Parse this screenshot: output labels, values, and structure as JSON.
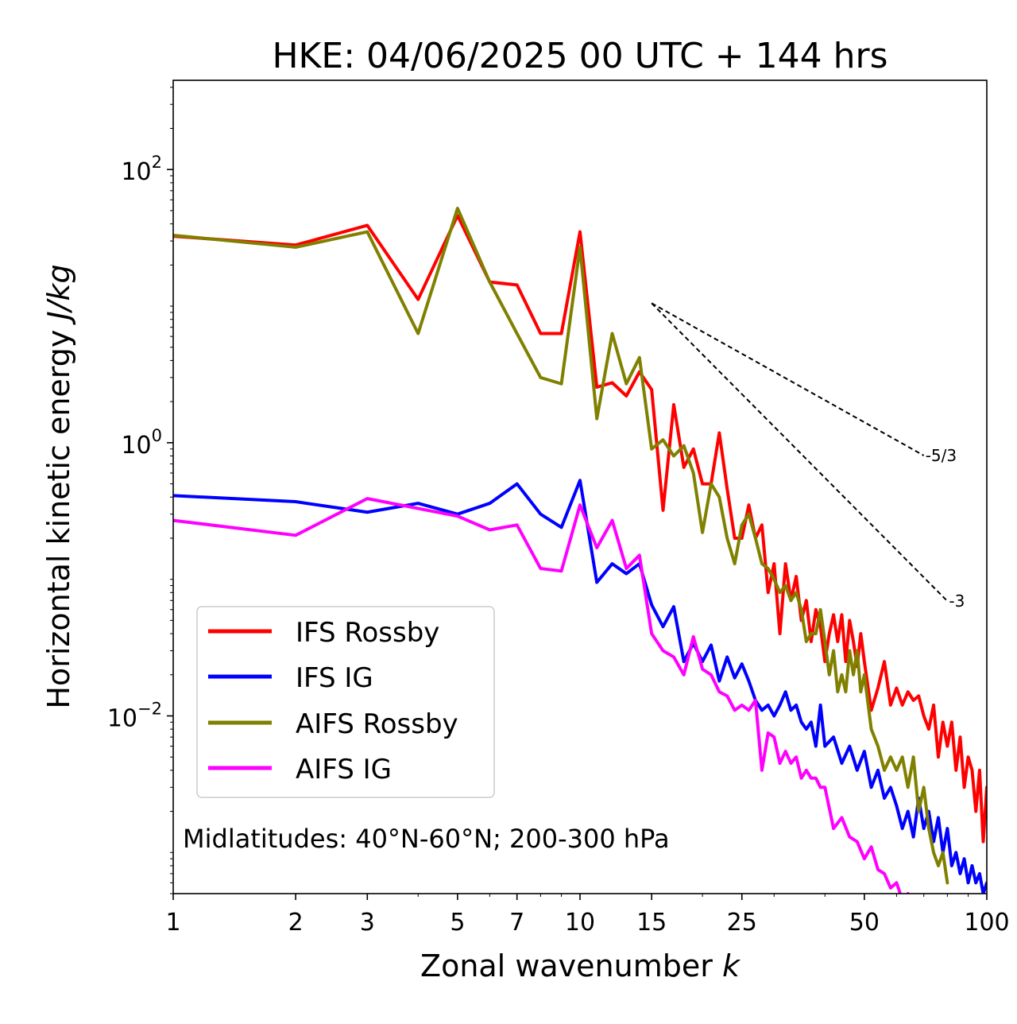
{
  "chart_data": {
    "type": "line",
    "title": "HKE: 04/06/2025 00 UTC + 144 hrs",
    "xlabel_text": "Zonal wavenumber ",
    "xlabel_math": "k",
    "ylabel_text": "Horizontal kinetic energy ",
    "ylabel_math": "J/kg",
    "xscale": "log",
    "yscale": "log",
    "xlim": [
      1,
      100
    ],
    "ylim": [
      0.0005,
      450
    ],
    "x_ticks": [
      {
        "value": 1,
        "label": "1"
      },
      {
        "value": 2,
        "label": "2"
      },
      {
        "value": 3,
        "label": "3"
      },
      {
        "value": 5,
        "label": "5"
      },
      {
        "value": 7,
        "label": "7"
      },
      {
        "value": 10,
        "label": "10"
      },
      {
        "value": 15,
        "label": "15"
      },
      {
        "value": 25,
        "label": "25"
      },
      {
        "value": 50,
        "label": "50"
      },
      {
        "value": 100,
        "label": "100"
      }
    ],
    "y_ticks": [
      {
        "value": 100,
        "base": "10",
        "exp": "2"
      },
      {
        "value": 1,
        "base": "10",
        "exp": "0"
      },
      {
        "value": 0.01,
        "base": "10",
        "exp": "−2"
      }
    ],
    "annotation": "Midlatitudes: 40°N-60°N; 200-300 hPa",
    "legend_position": "lower-left",
    "grid": false,
    "series": [
      {
        "name": "IFS Rossby",
        "color": "#ff0000",
        "x": [
          1,
          2,
          3,
          4,
          5,
          6,
          7,
          8,
          9,
          10,
          11,
          12,
          13,
          14,
          15,
          16,
          17,
          18,
          19,
          20,
          21,
          22,
          23,
          24,
          25,
          26,
          27,
          28,
          29,
          30,
          31,
          32,
          33,
          34,
          35,
          36,
          37,
          38,
          39,
          40,
          41,
          42,
          43,
          44,
          45,
          46,
          47,
          48,
          49,
          50,
          52,
          54,
          56,
          58,
          60,
          62,
          64,
          66,
          68,
          70,
          72,
          74,
          76,
          78,
          80,
          82,
          84,
          86,
          88,
          90,
          92,
          94,
          96,
          98,
          100
        ],
        "y": [
          32.5,
          28,
          39,
          11.2,
          46,
          15,
          14.3,
          6.3,
          6.3,
          35,
          2.55,
          2.75,
          2.2,
          3.3,
          2.45,
          0.32,
          1.9,
          0.66,
          0.9,
          0.5,
          0.5,
          1.18,
          0.46,
          0.2,
          0.2,
          0.35,
          0.2,
          0.25,
          0.08,
          0.13,
          0.04,
          0.13,
          0.07,
          0.105,
          0.05,
          0.07,
          0.035,
          0.06,
          0.045,
          0.025,
          0.04,
          0.055,
          0.035,
          0.055,
          0.025,
          0.05,
          0.035,
          0.023,
          0.04,
          0.025,
          0.011,
          0.016,
          0.025,
          0.012,
          0.016,
          0.012,
          0.015,
          0.013,
          0.014,
          0.01,
          0.008,
          0.012,
          0.005,
          0.009,
          0.006,
          0.009,
          0.004,
          0.007,
          0.003,
          0.005,
          0.004,
          0.002,
          0.004,
          0.0012,
          0.003
        ]
      },
      {
        "name": "IFS IG",
        "color": "#0000ff",
        "x": [
          1,
          2,
          3,
          4,
          5,
          6,
          7,
          8,
          9,
          10,
          11,
          12,
          13,
          14,
          15,
          16,
          17,
          18,
          19,
          20,
          21,
          22,
          23,
          24,
          25,
          26,
          27,
          28,
          29,
          30,
          31,
          32,
          33,
          34,
          35,
          36,
          37,
          38,
          39,
          40,
          42,
          44,
          46,
          48,
          50,
          52,
          54,
          56,
          58,
          60,
          62,
          64,
          66,
          68,
          70,
          72,
          74,
          76,
          78,
          80,
          82,
          84,
          86,
          88,
          90,
          92,
          94,
          96,
          98,
          100
        ],
        "y": [
          0.41,
          0.37,
          0.31,
          0.36,
          0.3,
          0.36,
          0.5,
          0.3,
          0.24,
          0.53,
          0.095,
          0.13,
          0.11,
          0.13,
          0.065,
          0.045,
          0.063,
          0.025,
          0.034,
          0.025,
          0.033,
          0.018,
          0.027,
          0.019,
          0.024,
          0.018,
          0.013,
          0.011,
          0.012,
          0.01,
          0.012,
          0.015,
          0.011,
          0.012,
          0.009,
          0.008,
          0.009,
          0.006,
          0.012,
          0.006,
          0.007,
          0.0045,
          0.006,
          0.004,
          0.0055,
          0.003,
          0.004,
          0.0025,
          0.003,
          0.0022,
          0.0015,
          0.002,
          0.0013,
          0.0025,
          0.0015,
          0.002,
          0.0012,
          0.0018,
          0.001,
          0.0015,
          0.0008,
          0.001,
          0.0007,
          0.0009,
          0.0006,
          0.0008,
          0.0006,
          0.0007,
          0.0005,
          0.0006
        ]
      },
      {
        "name": "AIFS Rossby",
        "color": "#808000",
        "x": [
          1,
          2,
          3,
          4,
          5,
          6,
          7,
          8,
          9,
          10,
          11,
          12,
          13,
          14,
          15,
          16,
          17,
          18,
          19,
          20,
          21,
          22,
          23,
          24,
          25,
          26,
          27,
          28,
          29,
          30,
          31,
          32,
          33,
          34,
          35,
          36,
          37,
          38,
          39,
          40,
          41,
          42,
          43,
          44,
          45,
          46,
          47,
          48,
          49,
          50,
          52,
          54,
          56,
          58,
          60,
          62,
          64,
          66,
          68,
          70,
          72,
          74,
          76,
          78,
          80
        ],
        "y": [
          33,
          27,
          35,
          6.3,
          52,
          15,
          6.3,
          3,
          2.7,
          27,
          1.5,
          6.3,
          2.7,
          4.2,
          0.9,
          1.05,
          0.8,
          0.95,
          0.6,
          0.22,
          0.5,
          0.4,
          0.2,
          0.13,
          0.25,
          0.3,
          0.2,
          0.13,
          0.12,
          0.1,
          0.08,
          0.09,
          0.07,
          0.08,
          0.06,
          0.035,
          0.04,
          0.04,
          0.06,
          0.035,
          0.02,
          0.03,
          0.015,
          0.02,
          0.015,
          0.03,
          0.02,
          0.03,
          0.015,
          0.02,
          0.008,
          0.006,
          0.004,
          0.005,
          0.004,
          0.005,
          0.003,
          0.005,
          0.002,
          0.003,
          0.0015,
          0.001,
          0.0008,
          0.001,
          0.0006
        ]
      },
      {
        "name": "AIFS IG",
        "color": "#ff00ff",
        "x": [
          1,
          2,
          3,
          4,
          5,
          6,
          7,
          8,
          9,
          10,
          11,
          12,
          13,
          14,
          15,
          16,
          17,
          18,
          19,
          20,
          21,
          22,
          23,
          24,
          25,
          26,
          27,
          28,
          29,
          30,
          31,
          32,
          33,
          34,
          35,
          36,
          37,
          38,
          39,
          40,
          42,
          44,
          46,
          48,
          50,
          52,
          54,
          56,
          58,
          60,
          62,
          64,
          66,
          68,
          70
        ],
        "y": [
          0.27,
          0.21,
          0.39,
          0.33,
          0.29,
          0.23,
          0.25,
          0.12,
          0.115,
          0.35,
          0.17,
          0.27,
          0.12,
          0.15,
          0.04,
          0.03,
          0.027,
          0.02,
          0.038,
          0.022,
          0.02,
          0.015,
          0.014,
          0.011,
          0.012,
          0.011,
          0.013,
          0.004,
          0.0075,
          0.007,
          0.0045,
          0.0055,
          0.0045,
          0.005,
          0.0035,
          0.004,
          0.0035,
          0.0035,
          0.003,
          0.003,
          0.0015,
          0.0018,
          0.0013,
          0.0012,
          0.0009,
          0.0011,
          0.00075,
          0.0007,
          0.00055,
          0.0006,
          0.00045,
          0.0005,
          0.0004,
          0.00045,
          0.0004
        ]
      }
    ],
    "reference_slopes": [
      {
        "label": "-5/3",
        "exponent": -1.6667,
        "x_start": 15,
        "x_end": 70,
        "y_start": 10.5
      },
      {
        "label": "-3",
        "exponent": -3,
        "x_start": 15,
        "x_end": 80,
        "y_start": 10.5
      }
    ]
  }
}
